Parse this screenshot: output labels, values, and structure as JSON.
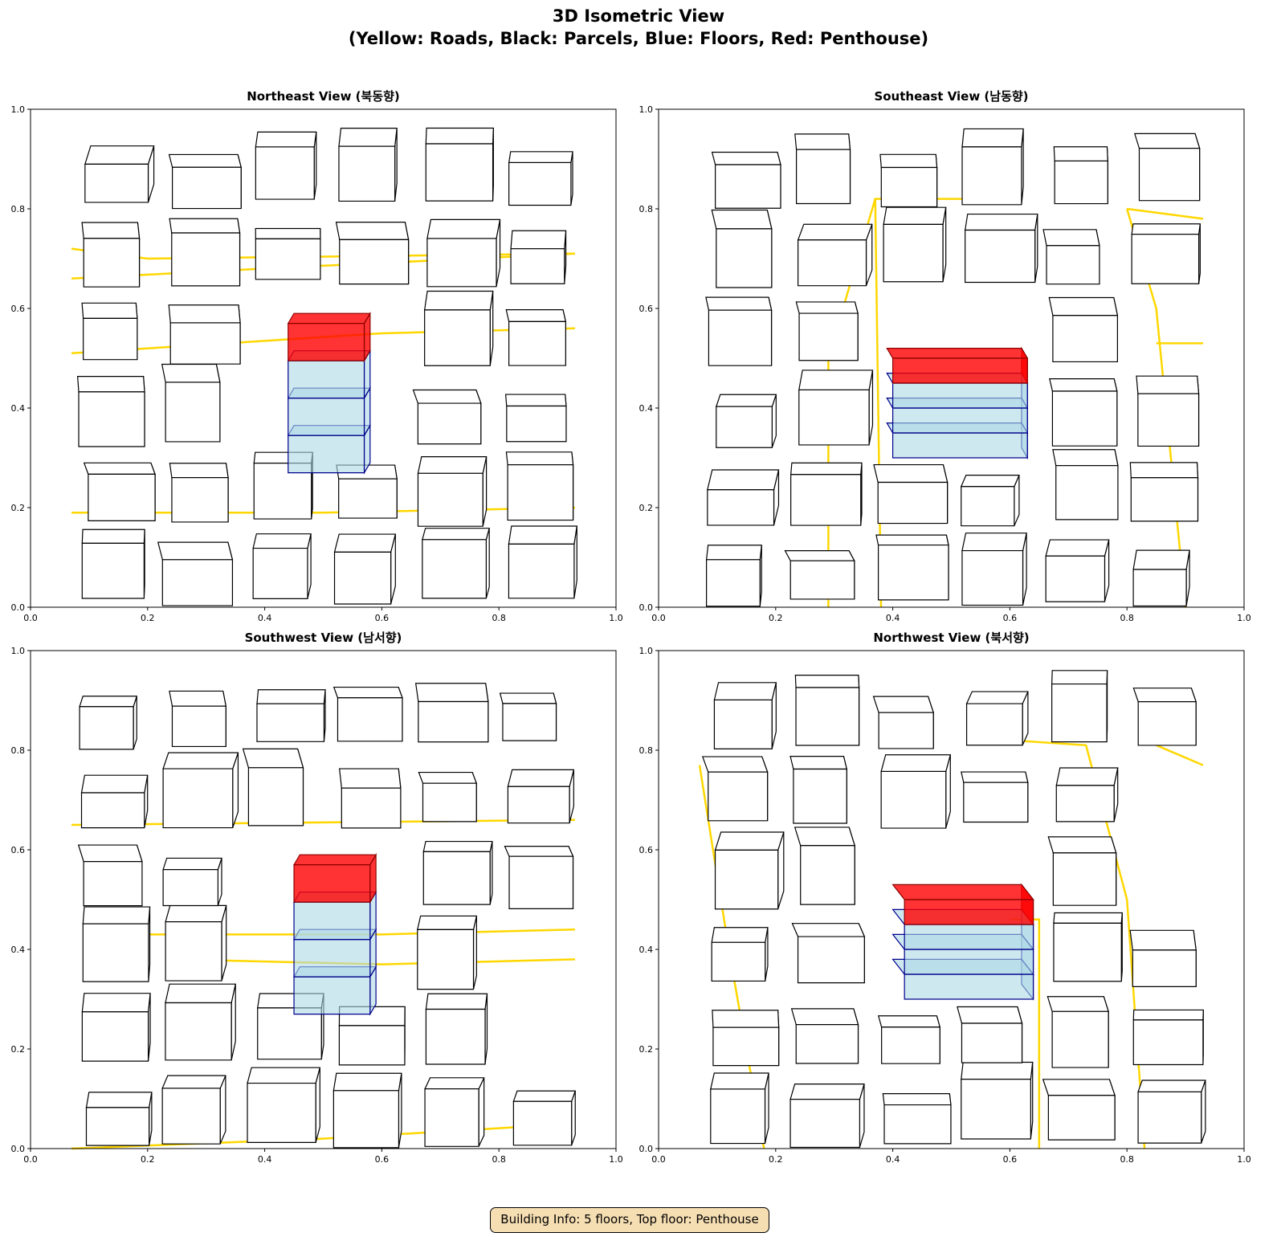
{
  "figure": {
    "title_line1": "3D Isometric View",
    "title_line2": "(Yellow: Roads, Black: Parcels, Blue: Floors, Red: Penthouse)",
    "info_box": "Building Info: 5 floors, Top floor: Penthouse"
  },
  "panels": [
    {
      "title": "Northeast View (북동향)"
    },
    {
      "title": "Southeast View (남동향)"
    },
    {
      "title": "Southwest View (남서향)"
    },
    {
      "title": "Northwest View (북서향)"
    }
  ],
  "axes": {
    "xlim": [
      0,
      1
    ],
    "ylim": [
      0,
      1
    ],
    "ticks": [
      "0.0",
      "0.2",
      "0.4",
      "0.6",
      "0.8",
      "1.0"
    ]
  },
  "colors": {
    "roads": "#ffd700",
    "parcels": "#000000",
    "floors_fill": "#add8e6",
    "floors_edge": "#00008b",
    "penthouse_fill": "#ff0000",
    "penthouse_edge": "#8b0000",
    "info_bg": "#f6deb3"
  },
  "building": {
    "floors": 5,
    "top_floor": "Penthouse"
  }
}
